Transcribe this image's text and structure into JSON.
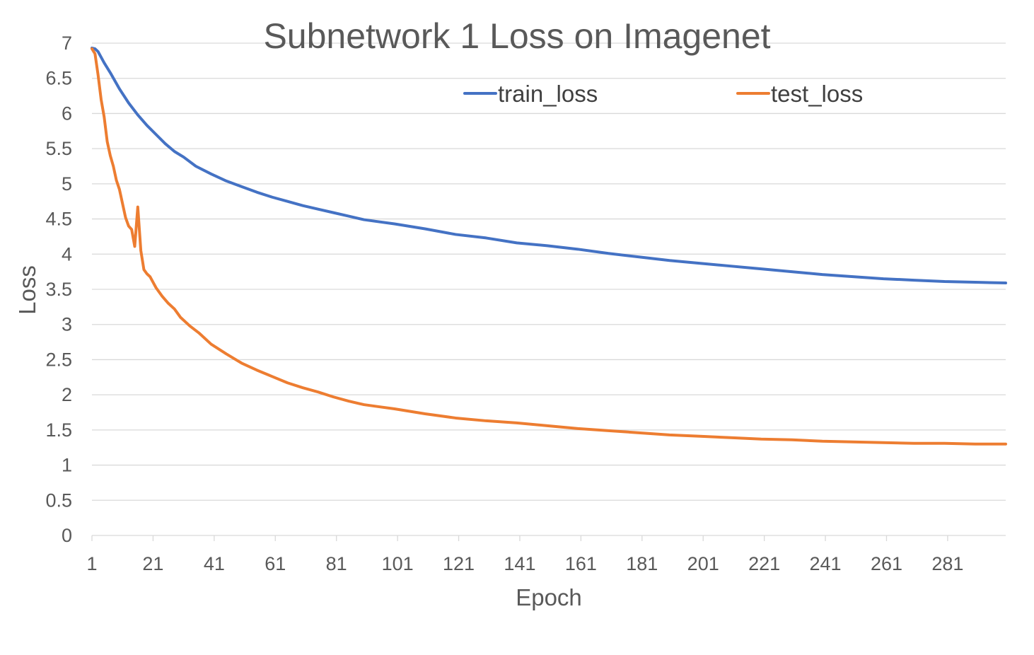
{
  "chart_data": {
    "type": "line",
    "title": "Subnetwork 1 Loss on Imagenet",
    "xlabel": "Epoch",
    "ylabel": "Loss",
    "ylim": [
      0,
      7
    ],
    "y_ticks": [
      0,
      0.5,
      1,
      1.5,
      2,
      2.5,
      3,
      3.5,
      4,
      4.5,
      5,
      5.5,
      6,
      6.5,
      7
    ],
    "x_tick_labels": [
      "1",
      "21",
      "41",
      "61",
      "81",
      "101",
      "121",
      "141",
      "161",
      "181",
      "201",
      "221",
      "241",
      "261",
      "281"
    ],
    "x_range": [
      1,
      300
    ],
    "grid": "horizontal",
    "legend_position": "top",
    "series": [
      {
        "name": "train_loss",
        "color": "#4472C4",
        "x": [
          1,
          2,
          3,
          5,
          7,
          10,
          13,
          16,
          19,
          22,
          25,
          28,
          31,
          35,
          40,
          45,
          50,
          55,
          60,
          65,
          70,
          75,
          80,
          85,
          90,
          95,
          100,
          110,
          120,
          130,
          140,
          150,
          160,
          170,
          180,
          190,
          200,
          210,
          220,
          230,
          240,
          250,
          260,
          270,
          280,
          290,
          300
        ],
        "values": [
          6.93,
          6.92,
          6.88,
          6.72,
          6.58,
          6.35,
          6.15,
          5.98,
          5.83,
          5.7,
          5.57,
          5.46,
          5.38,
          5.25,
          5.14,
          5.04,
          4.96,
          4.88,
          4.81,
          4.75,
          4.69,
          4.64,
          4.59,
          4.54,
          4.49,
          4.46,
          4.43,
          4.36,
          4.28,
          4.23,
          4.16,
          4.12,
          4.07,
          4.01,
          3.96,
          3.91,
          3.87,
          3.83,
          3.79,
          3.75,
          3.71,
          3.68,
          3.65,
          3.63,
          3.61,
          3.6,
          3.59
        ]
      },
      {
        "name": "test_loss",
        "color": "#ED7D31",
        "x": [
          1,
          2,
          3,
          4,
          5,
          6,
          7,
          8,
          9,
          10,
          11,
          12,
          13,
          14,
          15,
          16,
          17,
          18,
          19,
          20,
          21,
          22,
          24,
          26,
          28,
          30,
          33,
          36,
          40,
          45,
          50,
          55,
          60,
          65,
          70,
          75,
          80,
          85,
          90,
          95,
          100,
          110,
          120,
          130,
          140,
          150,
          160,
          170,
          180,
          190,
          200,
          210,
          220,
          230,
          240,
          250,
          260,
          270,
          280,
          290,
          300
        ],
        "values": [
          6.92,
          6.85,
          6.55,
          6.2,
          5.95,
          5.6,
          5.4,
          5.25,
          5.05,
          4.92,
          4.72,
          4.52,
          4.4,
          4.35,
          4.11,
          4.67,
          4.05,
          3.78,
          3.72,
          3.68,
          3.6,
          3.52,
          3.4,
          3.3,
          3.22,
          3.1,
          2.98,
          2.88,
          2.72,
          2.58,
          2.45,
          2.35,
          2.26,
          2.17,
          2.1,
          2.04,
          1.97,
          1.91,
          1.86,
          1.83,
          1.8,
          1.73,
          1.67,
          1.63,
          1.6,
          1.56,
          1.52,
          1.49,
          1.46,
          1.43,
          1.41,
          1.39,
          1.37,
          1.36,
          1.34,
          1.33,
          1.32,
          1.31,
          1.31,
          1.3,
          1.3
        ]
      }
    ]
  }
}
